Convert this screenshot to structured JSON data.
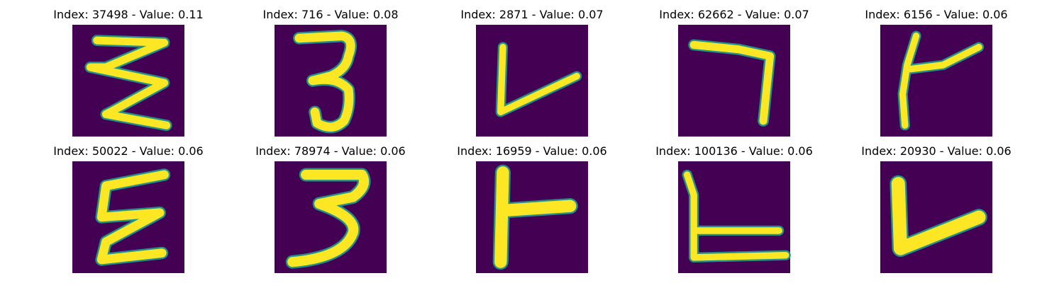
{
  "figure": {
    "background": "#ffffff",
    "image_background": "#440154",
    "stroke_colors": {
      "edge": "#21918c",
      "core": "#fde725"
    }
  },
  "chart_data": {
    "type": "image_grid",
    "rows": 2,
    "cols": 5,
    "axes": "off",
    "colormap": "viridis",
    "panels": [
      {
        "index": 37498,
        "value": 0.11,
        "title": "Index: 37498 - Value: 0.11",
        "glyph": "zigzag-w"
      },
      {
        "index": 716,
        "value": 0.08,
        "title": "Index: 716 - Value: 0.08",
        "glyph": "three"
      },
      {
        "index": 2871,
        "value": 0.07,
        "title": "Index: 2871 - Value: 0.07",
        "glyph": "check-v"
      },
      {
        "index": 62662,
        "value": 0.07,
        "title": "Index: 62662 - Value: 0.07",
        "glyph": "seven"
      },
      {
        "index": 6156,
        "value": 0.06,
        "title": "Index: 6156 - Value: 0.06",
        "glyph": "k-shape"
      },
      {
        "index": 50022,
        "value": 0.06,
        "title": "Index: 50022 - Value: 0.06",
        "glyph": "zigzag-e"
      },
      {
        "index": 78974,
        "value": 0.06,
        "title": "Index: 78974 - Value: 0.06",
        "glyph": "three-tall"
      },
      {
        "index": 16959,
        "value": 0.06,
        "title": "Index: 16959 - Value: 0.06",
        "glyph": "tee"
      },
      {
        "index": 100136,
        "value": 0.06,
        "title": "Index: 100136 - Value: 0.06",
        "glyph": "ell"
      },
      {
        "index": 20930,
        "value": 0.06,
        "title": "Index: 20930 - Value: 0.06",
        "glyph": "check-v-thick"
      }
    ]
  }
}
